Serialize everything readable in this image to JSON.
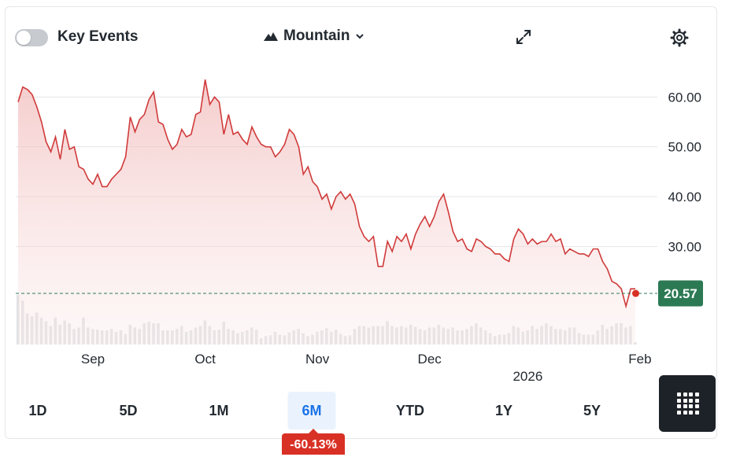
{
  "header": {
    "key_events_label": "Key Events",
    "key_events_enabled": false,
    "chart_type_label": "Mountain",
    "chart_type_icon": "mountain-icon",
    "expand_icon": "expand-icon",
    "settings_icon": "gear-icon"
  },
  "ranges": {
    "items": [
      "1D",
      "5D",
      "1M",
      "6M",
      "YTD",
      "1Y",
      "5Y"
    ],
    "active": "6M",
    "change": "-60.13%"
  },
  "colors": {
    "line": "#d03a3a",
    "area": "#f6d6d6",
    "volume": "#dfe1e4",
    "last_price_badge": "#2c7a54",
    "negative": "#d93025",
    "accent": "#1a73e8"
  },
  "chart_data": {
    "type": "area",
    "y_ticks": [
      "60.00",
      "50.00",
      "40.00",
      "30.00"
    ],
    "y_tick_values": [
      60,
      50,
      40,
      30
    ],
    "ylim": [
      10,
      70
    ],
    "x_ticks": [
      {
        "label": "Sep",
        "index": 16
      },
      {
        "label": "Oct",
        "index": 40
      },
      {
        "label": "Nov",
        "index": 64
      },
      {
        "label": "Dec",
        "index": 88
      },
      {
        "label": "Feb",
        "index": 133
      }
    ],
    "year_label": {
      "label": "2026",
      "index": 109
    },
    "last_price": 20.57,
    "last_price_label": "20.57",
    "prices": [
      59,
      62,
      61.5,
      60.5,
      58,
      55,
      51,
      49,
      52,
      47.5,
      53.5,
      49.5,
      50,
      46,
      45.5,
      43.5,
      42.5,
      44.5,
      42,
      42,
      43.5,
      44.5,
      45.5,
      48,
      56,
      53,
      55.5,
      56.5,
      59.5,
      61,
      55,
      54.5,
      51.5,
      49.5,
      50.5,
      53.5,
      52,
      52.5,
      56.5,
      57,
      63.5,
      58.5,
      60,
      59,
      52.5,
      56.5,
      52.5,
      53,
      51.5,
      50.5,
      54,
      52,
      50.5,
      50,
      50,
      48,
      49,
      50.5,
      53.5,
      52.5,
      50,
      44.5,
      46,
      43,
      42,
      39.5,
      40.5,
      37.5,
      40,
      41,
      39.5,
      40.5,
      38.5,
      34,
      32,
      31,
      32,
      26,
      26,
      31,
      29,
      32,
      31,
      32.5,
      29.5,
      32.5,
      34.5,
      36,
      34,
      36,
      39,
      40.5,
      37,
      33,
      31,
      31.5,
      29.5,
      29,
      31.5,
      31,
      30,
      29.5,
      28.5,
      28.5,
      27.5,
      27,
      31.5,
      33.5,
      32.5,
      30.5,
      31.5,
      30.5,
      31,
      31,
      32.5,
      31,
      31.5,
      28.5,
      29.5,
      29,
      28.5,
      28.5,
      28,
      29.5,
      29.5,
      27,
      25.5,
      23,
      22.5,
      21.5,
      18,
      21.5,
      21.5
    ],
    "volume_relative": [
      0.7,
      0.62,
      0.44,
      0.4,
      0.45,
      0.38,
      0.33,
      0.26,
      0.38,
      0.28,
      0.34,
      0.3,
      0.22,
      0.24,
      0.38,
      0.24,
      0.22,
      0.21,
      0.2,
      0.2,
      0.22,
      0.18,
      0.2,
      0.15,
      0.28,
      0.24,
      0.22,
      0.3,
      0.32,
      0.3,
      0.3,
      0.2,
      0.2,
      0.2,
      0.22,
      0.26,
      0.18,
      0.2,
      0.24,
      0.26,
      0.34,
      0.26,
      0.2,
      0.21,
      0.32,
      0.22,
      0.2,
      0.16,
      0.18,
      0.2,
      0.24,
      0.21,
      0.09,
      0.12,
      0.13,
      0.18,
      0.14,
      0.13,
      0.17,
      0.2,
      0.22,
      0.16,
      0.12,
      0.14,
      0.18,
      0.2,
      0.23,
      0.18,
      0.21,
      0.15,
      0.12,
      0.13,
      0.22,
      0.26,
      0.26,
      0.24,
      0.26,
      0.26,
      0.26,
      0.33,
      0.26,
      0.24,
      0.26,
      0.24,
      0.28,
      0.25,
      0.22,
      0.2,
      0.24,
      0.24,
      0.28,
      0.24,
      0.22,
      0.24,
      0.2,
      0.2,
      0.22,
      0.26,
      0.3,
      0.24,
      0.2,
      0.16,
      0.12,
      0.14,
      0.14,
      0.16,
      0.26,
      0.24,
      0.18,
      0.2,
      0.26,
      0.22,
      0.26,
      0.3,
      0.26,
      0.22,
      0.22,
      0.2,
      0.24,
      0.24,
      0.16,
      0.14,
      0.14,
      0.14,
      0.2,
      0.28,
      0.22,
      0.26,
      0.3,
      0.3,
      0.24,
      0.26,
      0.03
    ]
  }
}
